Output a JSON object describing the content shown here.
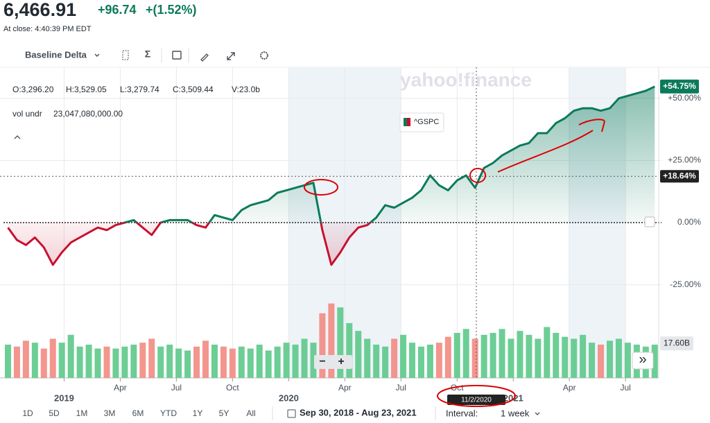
{
  "header": {
    "price": "6,466.91",
    "change": "+96.74",
    "change_pct": "+(1.52%)",
    "close_time": "At close: 4:40:39 PM EDT"
  },
  "toolbar": {
    "chart_type": "Baseline Delta",
    "indicators_icon": "Σ"
  },
  "ohlc": {
    "open": "O:3,296.20",
    "high": "H:3,529.05",
    "low": "L:3,279.74",
    "close": "C:3,509.44",
    "volume": "V:23.0b",
    "vol_label": "vol undr",
    "vol_value": "23,047,080,000.00"
  },
  "chart_data": {
    "type": "line",
    "watermark": "yahoo!finance",
    "baseline": 0,
    "xlim": [
      2018.73,
      2021.66
    ],
    "xticks": [
      {
        "value": 2019,
        "label": "2019"
      },
      {
        "value": 2019.25,
        "label": "Apr"
      },
      {
        "value": 2019.5,
        "label": "Jul"
      },
      {
        "value": 2019.75,
        "label": "Oct"
      },
      {
        "value": 2020,
        "label": "2020"
      },
      {
        "value": 2020.25,
        "label": "Apr"
      },
      {
        "value": 2020.5,
        "label": "Jul"
      },
      {
        "value": 2020.75,
        "label": "Oct"
      },
      {
        "value": 2021,
        "label": "2021"
      },
      {
        "value": 2021.25,
        "label": "Apr"
      },
      {
        "value": 2021.5,
        "label": "Jul"
      }
    ],
    "ylim": [
      -62.5,
      62.5
    ],
    "yticks": [
      {
        "value": 50,
        "label": "+50.00%"
      },
      {
        "value": 25,
        "label": "+25.00%"
      },
      {
        "value": 0,
        "label": "0.00%"
      },
      {
        "value": -25,
        "label": "-25.00%"
      }
    ],
    "grid": true,
    "x": [
      2018.75,
      2018.79,
      2018.83,
      2018.87,
      2018.91,
      2018.95,
      2018.99,
      2019.03,
      2019.07,
      2019.11,
      2019.15,
      2019.19,
      2019.23,
      2019.27,
      2019.31,
      2019.35,
      2019.39,
      2019.43,
      2019.47,
      2019.51,
      2019.55,
      2019.59,
      2019.63,
      2019.67,
      2019.71,
      2019.75,
      2019.79,
      2019.83,
      2019.87,
      2019.91,
      2019.95,
      2019.99,
      2020.03,
      2020.07,
      2020.11,
      2020.15,
      2020.19,
      2020.23,
      2020.27,
      2020.31,
      2020.35,
      2020.39,
      2020.43,
      2020.47,
      2020.51,
      2020.55,
      2020.59,
      2020.63,
      2020.67,
      2020.71,
      2020.75,
      2020.79,
      2020.83,
      2020.87,
      2020.91,
      2020.95,
      2020.99,
      2021.03,
      2021.07,
      2021.11,
      2021.15,
      2021.19,
      2021.23,
      2021.27,
      2021.31,
      2021.35,
      2021.39,
      2021.43,
      2021.47,
      2021.51,
      2021.55,
      2021.59,
      2021.63
    ],
    "series": [
      {
        "name": "^GSPC",
        "color": "#0b7a5a",
        "negative_color": "#c8102e",
        "values": [
          -2,
          -7,
          -9,
          -6,
          -10,
          -17,
          -12,
          -8,
          -6,
          -4,
          -2,
          -3,
          -1,
          0,
          1,
          -2,
          -5,
          0,
          1,
          1,
          1,
          -1,
          -2,
          3,
          2,
          1,
          5,
          7,
          8,
          9,
          12,
          13,
          14,
          15,
          16,
          -3,
          -17,
          -12,
          -6,
          -2,
          -1,
          2,
          7,
          6,
          8,
          10,
          13,
          19,
          15,
          13,
          17,
          19,
          14,
          22,
          24,
          27,
          29,
          31,
          32,
          36,
          36,
          40,
          42,
          45,
          46,
          46,
          45,
          46,
          50,
          51,
          52,
          53,
          54.75
        ]
      }
    ],
    "last_label": {
      "value": 54.75,
      "label": "+54.75%"
    },
    "crosshair": {
      "date": "11/2/2020",
      "value": 18.64,
      "label": "+18.64%"
    },
    "volume": {
      "up_color": "#5cc989",
      "down_color": "#f28b82",
      "ylim": [
        0,
        40
      ],
      "values": [
        17,
        16,
        19,
        18,
        15,
        20,
        18,
        22,
        16,
        17,
        15,
        16,
        15,
        16,
        17,
        18,
        20,
        16,
        17,
        15,
        14,
        16,
        19,
        17,
        16,
        15,
        16,
        15,
        17,
        14,
        16,
        18,
        17,
        20,
        18,
        33,
        38,
        36,
        28,
        24,
        20,
        17,
        16,
        20,
        22,
        18,
        16,
        17,
        18,
        21,
        23,
        25,
        20,
        22,
        23,
        25,
        20,
        24,
        22,
        20,
        26,
        23,
        21,
        20,
        22,
        18,
        17,
        19,
        20,
        18,
        17,
        16,
        17
      ],
      "label": {
        "value": 17.6,
        "label": "17.60B"
      }
    },
    "zoom": [
      "−",
      "+"
    ],
    "scroll": "»"
  },
  "footer": {
    "ranges": [
      "1D",
      "5D",
      "1M",
      "3M",
      "6M",
      "YTD",
      "1Y",
      "5Y",
      "All"
    ],
    "date_range": "Sep 30, 2018 - Aug 23, 2021",
    "interval_label": "Interval:",
    "interval": "1 week"
  }
}
